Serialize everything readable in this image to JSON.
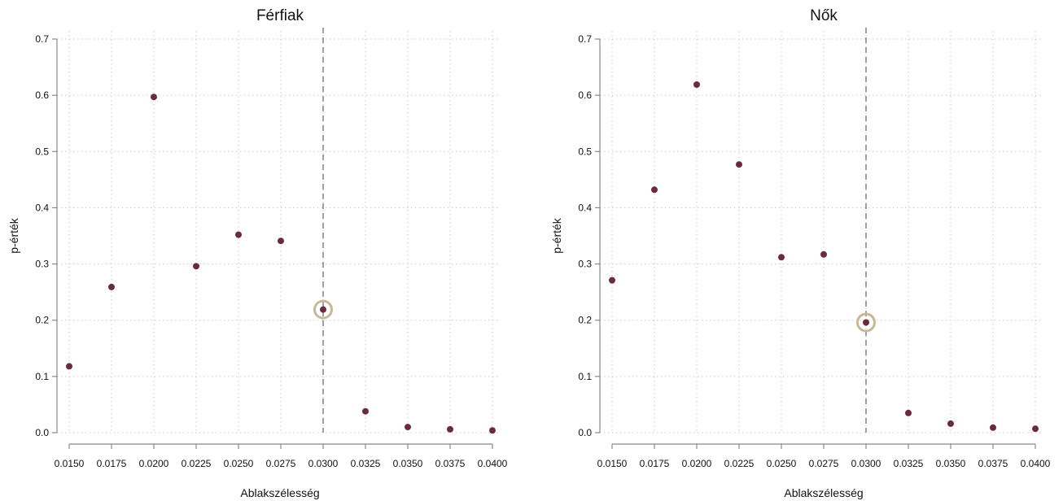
{
  "chart_data": [
    {
      "type": "scatter",
      "title": "Férfiak",
      "xlabel": "Ablakszélesség",
      "ylabel": "p-érték",
      "xlim": [
        0.015,
        0.04
      ],
      "ylim": [
        0,
        0.7
      ],
      "x_ticks": [
        "0.0150",
        "0.0175",
        "0.0200",
        "0.0225",
        "0.0250",
        "0.0275",
        "0.0300",
        "0.0325",
        "0.0350",
        "0.0375",
        "0.0400"
      ],
      "y_ticks": [
        "0.0",
        "0.1",
        "0.2",
        "0.3",
        "0.4",
        "0.5",
        "0.6",
        "0.7"
      ],
      "grid": true,
      "reference_line_x": 0.03,
      "highlight_point": {
        "x": 0.03,
        "y": 0.219
      },
      "point_color": "#6b2b3d",
      "highlight_color": "#c8b896",
      "points": [
        {
          "x": 0.015,
          "y": 0.118
        },
        {
          "x": 0.0175,
          "y": 0.259
        },
        {
          "x": 0.02,
          "y": 0.597
        },
        {
          "x": 0.0225,
          "y": 0.296
        },
        {
          "x": 0.025,
          "y": 0.352
        },
        {
          "x": 0.0275,
          "y": 0.341
        },
        {
          "x": 0.03,
          "y": 0.219
        },
        {
          "x": 0.0325,
          "y": 0.038
        },
        {
          "x": 0.035,
          "y": 0.01
        },
        {
          "x": 0.0375,
          "y": 0.006
        },
        {
          "x": 0.04,
          "y": 0.004
        }
      ]
    },
    {
      "type": "scatter",
      "title": "Nők",
      "xlabel": "Ablakszélesség",
      "ylabel": "p-érték",
      "xlim": [
        0.015,
        0.04
      ],
      "ylim": [
        0,
        0.7
      ],
      "x_ticks": [
        "0.0150",
        "0.0175",
        "0.0200",
        "0.0225",
        "0.0250",
        "0.0275",
        "0.0300",
        "0.0325",
        "0.0350",
        "0.0375",
        "0.0400"
      ],
      "y_ticks": [
        "0.0",
        "0.1",
        "0.2",
        "0.3",
        "0.4",
        "0.5",
        "0.6",
        "0.7"
      ],
      "grid": true,
      "reference_line_x": 0.03,
      "highlight_point": {
        "x": 0.03,
        "y": 0.196
      },
      "point_color": "#6b2b3d",
      "highlight_color": "#c8b896",
      "points": [
        {
          "x": 0.015,
          "y": 0.271
        },
        {
          "x": 0.0175,
          "y": 0.432
        },
        {
          "x": 0.02,
          "y": 0.619
        },
        {
          "x": 0.0225,
          "y": 0.477
        },
        {
          "x": 0.025,
          "y": 0.312
        },
        {
          "x": 0.0275,
          "y": 0.317
        },
        {
          "x": 0.03,
          "y": 0.196
        },
        {
          "x": 0.0325,
          "y": 0.035
        },
        {
          "x": 0.035,
          "y": 0.016
        },
        {
          "x": 0.0375,
          "y": 0.009
        },
        {
          "x": 0.04,
          "y": 0.007
        }
      ]
    }
  ]
}
